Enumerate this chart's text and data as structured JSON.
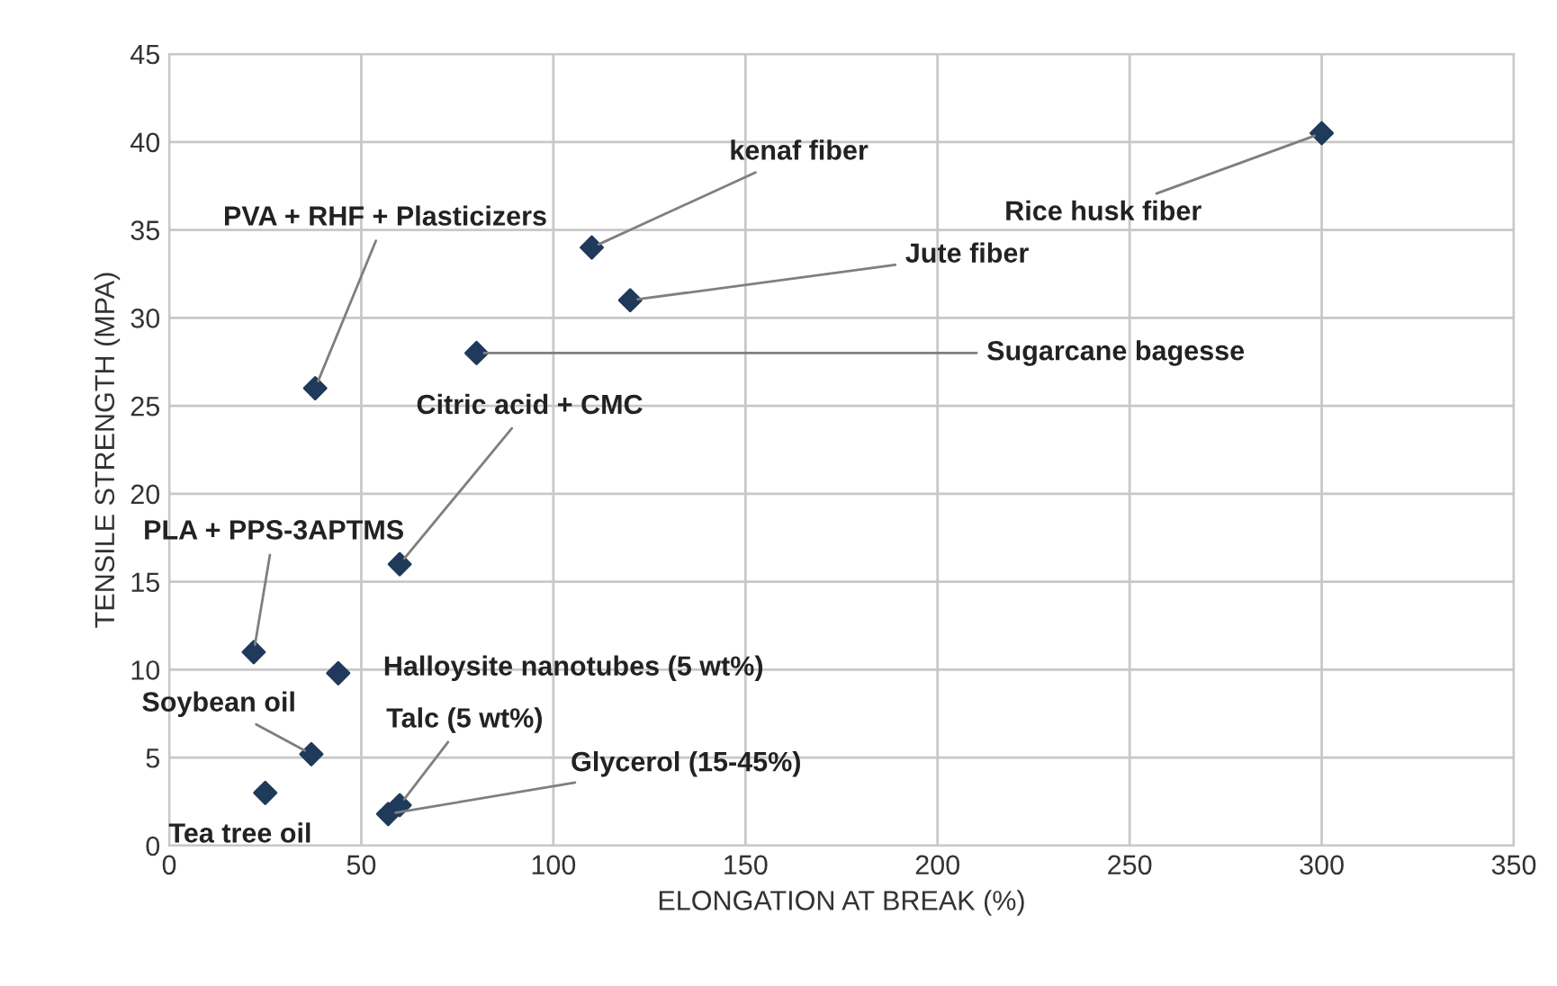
{
  "chart_data": {
    "type": "scatter",
    "xlabel": "ELONGATION AT BREAK (%)",
    "ylabel": "TENSILE STRENGTH (MPA)",
    "x": [
      300,
      110,
      120,
      80,
      38,
      60,
      22,
      44,
      37,
      25,
      60,
      57
    ],
    "series": [
      {
        "color": "#1f3a5a",
        "values": [
          40.5,
          34,
          31,
          28,
          26,
          16,
          11,
          9.8,
          5.2,
          3,
          2.3,
          1.8
        ]
      }
    ],
    "xlim": [
      0,
      350
    ],
    "ylim": [
      0,
      45
    ],
    "xticks": [
      0,
      50,
      100,
      150,
      200,
      250,
      300,
      350
    ],
    "yticks": [
      0,
      5,
      10,
      15,
      20,
      25,
      30,
      35,
      40,
      45
    ],
    "grid": true,
    "legend": false,
    "marker": "diamond",
    "annotations": [
      {
        "text": "Rice husk fiber",
        "x": 300,
        "y": 40.5
      },
      {
        "text": "kenaf fiber",
        "x": 110,
        "y": 34
      },
      {
        "text": "Jute fiber",
        "x": 120,
        "y": 31
      },
      {
        "text": "Sugarcane bagesse",
        "x": 80,
        "y": 28
      },
      {
        "text": "PVA + RHF + Plasticizers",
        "x": 38,
        "y": 26
      },
      {
        "text": "Citric acid + CMC",
        "x": 60,
        "y": 16
      },
      {
        "text": "PLA + PPS-3APTMS",
        "x": 22,
        "y": 11
      },
      {
        "text": "Halloysite nanotubes (5 wt%)",
        "x": 44,
        "y": 9.8
      },
      {
        "text": "Soybean oil",
        "x": 37,
        "y": 5.2
      },
      {
        "text": "Tea tree oil",
        "x": 25,
        "y": 3
      },
      {
        "text": "Talc (5 wt%)",
        "x": 60,
        "y": 2.3
      },
      {
        "text": "Glycerol (15-45%)",
        "x": 57,
        "y": 1.8
      }
    ]
  }
}
